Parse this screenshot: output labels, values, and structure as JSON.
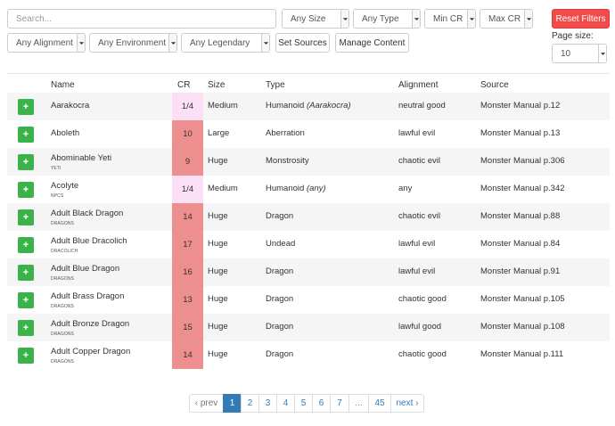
{
  "filters": {
    "search_placeholder": "Search...",
    "size": "Any Size",
    "type": "Any Type",
    "min_cr": "Min CR",
    "max_cr": "Max CR",
    "reset": "Reset Filters",
    "alignment": "Any Alignment",
    "environment": "Any Environment",
    "legendary": "Any Legendary",
    "set_sources": "Set Sources",
    "manage_content": "Manage Content",
    "page_size_label": "Page size:",
    "page_size_value": "10"
  },
  "table": {
    "headers": [
      "Name",
      "CR",
      "Size",
      "Type",
      "Alignment",
      "Source"
    ],
    "add_label": "+",
    "rows": [
      {
        "name": "Aarakocra",
        "tag": "",
        "cr": "1/4",
        "size": "Medium",
        "type": "Humanoid",
        "type_sub": "(Aarakocra)",
        "alignment": "neutral good",
        "source": "Monster Manual p.12"
      },
      {
        "name": "Aboleth",
        "tag": "",
        "cr": "10",
        "size": "Large",
        "type": "Aberration",
        "type_sub": "",
        "alignment": "lawful evil",
        "source": "Monster Manual p.13"
      },
      {
        "name": "Abominable Yeti",
        "tag": "Yeti",
        "cr": "9",
        "size": "Huge",
        "type": "Monstrosity",
        "type_sub": "",
        "alignment": "chaotic evil",
        "source": "Monster Manual p.306"
      },
      {
        "name": "Acolyte",
        "tag": "NPCs",
        "cr": "1/4",
        "size": "Medium",
        "type": "Humanoid",
        "type_sub": "(any)",
        "alignment": "any",
        "source": "Monster Manual p.342"
      },
      {
        "name": "Adult Black Dragon",
        "tag": "Dragons",
        "cr": "14",
        "size": "Huge",
        "type": "Dragon",
        "type_sub": "",
        "alignment": "chaotic evil",
        "source": "Monster Manual p.88"
      },
      {
        "name": "Adult Blue Dracolich",
        "tag": "Dracolich",
        "cr": "17",
        "size": "Huge",
        "type": "Undead",
        "type_sub": "",
        "alignment": "lawful evil",
        "source": "Monster Manual p.84"
      },
      {
        "name": "Adult Blue Dragon",
        "tag": "Dragons",
        "cr": "16",
        "size": "Huge",
        "type": "Dragon",
        "type_sub": "",
        "alignment": "lawful evil",
        "source": "Monster Manual p.91"
      },
      {
        "name": "Adult Brass Dragon",
        "tag": "Dragons",
        "cr": "13",
        "size": "Huge",
        "type": "Dragon",
        "type_sub": "",
        "alignment": "chaotic good",
        "source": "Monster Manual p.105"
      },
      {
        "name": "Adult Bronze Dragon",
        "tag": "Dragons",
        "cr": "15",
        "size": "Huge",
        "type": "Dragon",
        "type_sub": "",
        "alignment": "lawful good",
        "source": "Monster Manual p.108"
      },
      {
        "name": "Adult Copper Dragon",
        "tag": "Dragons",
        "cr": "14",
        "size": "Huge",
        "type": "Dragon",
        "type_sub": "",
        "alignment": "chaotic good",
        "source": "Monster Manual p.111"
      }
    ]
  },
  "cr_colors": {
    "low": "#fbe0f5",
    "high": "#ee8f8f"
  },
  "pagination": {
    "prev": "‹ prev",
    "pages": [
      "1",
      "2",
      "3",
      "4",
      "5",
      "6",
      "7",
      "...",
      "45"
    ],
    "active": "1",
    "next": "next ›"
  }
}
